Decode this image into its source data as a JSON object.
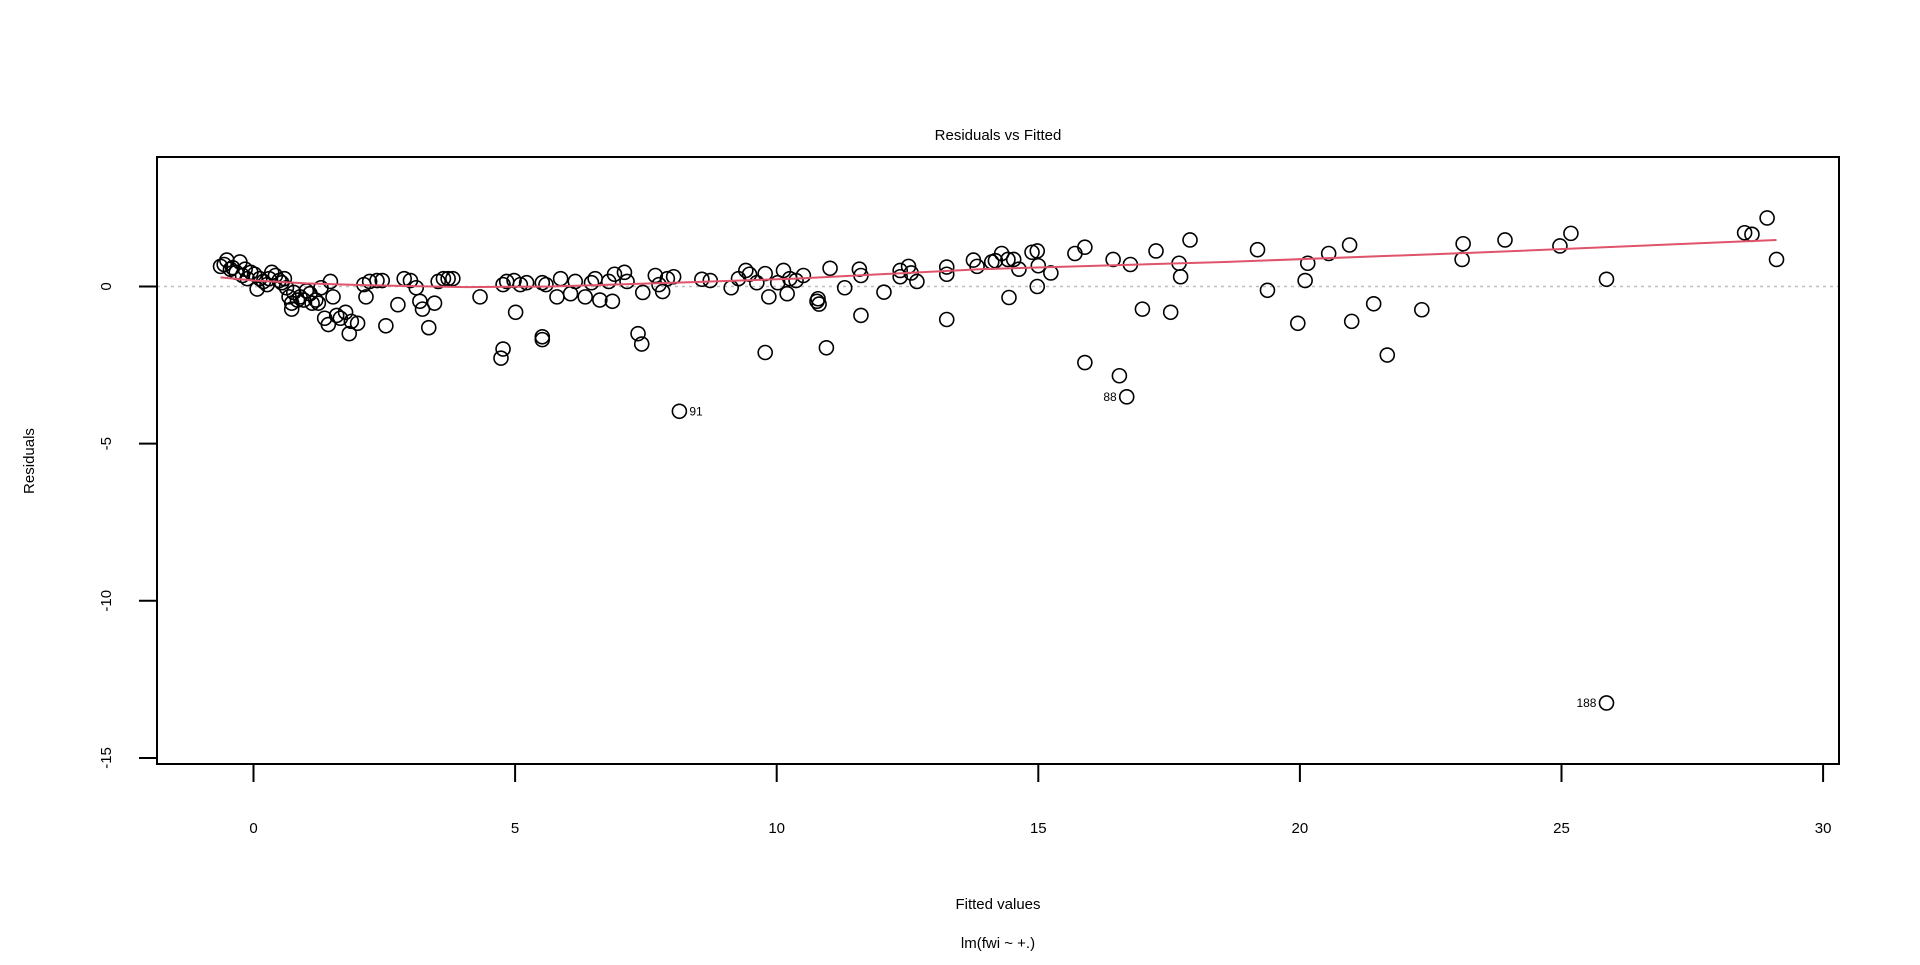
{
  "chart_data": {
    "type": "scatter",
    "title": "Residuals vs Fitted",
    "xlabel": "Fitted values",
    "ylabel": "Residuals",
    "subtitle": "lm(fwi ~ +.)",
    "xlim": [
      -1.85,
      30.3
    ],
    "ylim": [
      -15.2,
      4.1
    ],
    "x_ticks": [
      0,
      5,
      10,
      15,
      20,
      25,
      30
    ],
    "y_ticks": [
      0,
      -5,
      -10,
      -15
    ],
    "grid": false,
    "reference_line": 0,
    "colors": {
      "points": "#000000",
      "smooth": "#DF536B",
      "reference": "#BEBEBE"
    },
    "points": [
      [
        -0.63,
        0.64
      ],
      [
        -0.56,
        0.7
      ],
      [
        -0.51,
        0.84
      ],
      [
        -0.44,
        0.55
      ],
      [
        -0.4,
        0.6
      ],
      [
        -0.33,
        0.45
      ],
      [
        -0.26,
        0.78
      ],
      [
        -0.21,
        0.35
      ],
      [
        -0.16,
        0.55
      ],
      [
        -0.12,
        0.25
      ],
      [
        -0.05,
        0.45
      ],
      [
        0.02,
        0.39
      ],
      [
        0.07,
        -0.08
      ],
      [
        0.12,
        0.25
      ],
      [
        0.19,
        0.16
      ],
      [
        0.26,
        0.06
      ],
      [
        0.3,
        0.25
      ],
      [
        0.35,
        0.45
      ],
      [
        0.42,
        0.35
      ],
      [
        0.49,
        0.19
      ],
      [
        0.54,
        0.12
      ],
      [
        0.59,
        0.25
      ],
      [
        0.63,
        -0.04
      ],
      [
        0.68,
        -0.33
      ],
      [
        0.73,
        -0.72
      ],
      [
        0.73,
        -0.53
      ],
      [
        0.77,
        -0.19
      ],
      [
        0.84,
        -0.43
      ],
      [
        0.89,
        -0.33
      ],
      [
        0.96,
        -0.43
      ],
      [
        1.01,
        -0.14
      ],
      [
        1.08,
        -0.23
      ],
      [
        1.12,
        -0.53
      ],
      [
        1.19,
        -0.43
      ],
      [
        1.24,
        -0.53
      ],
      [
        1.29,
        -0.04
      ],
      [
        1.36,
        -1.01
      ],
      [
        1.43,
        -1.21
      ],
      [
        1.47,
        0.16
      ],
      [
        1.52,
        -0.33
      ],
      [
        1.59,
        -0.92
      ],
      [
        1.66,
        -1.01
      ],
      [
        1.76,
        -0.82
      ],
      [
        1.83,
        -1.5
      ],
      [
        1.87,
        -1.11
      ],
      [
        1.99,
        -1.17
      ],
      [
        2.11,
        0.06
      ],
      [
        2.15,
        -0.33
      ],
      [
        2.22,
        0.16
      ],
      [
        2.36,
        0.19
      ],
      [
        2.46,
        0.19
      ],
      [
        2.53,
        -1.25
      ],
      [
        2.76,
        -0.58
      ],
      [
        2.88,
        0.25
      ],
      [
        3.0,
        0.19
      ],
      [
        3.11,
        -0.04
      ],
      [
        3.18,
        -0.47
      ],
      [
        3.23,
        -0.72
      ],
      [
        3.35,
        -1.31
      ],
      [
        3.46,
        -0.53
      ],
      [
        3.53,
        0.16
      ],
      [
        3.63,
        0.25
      ],
      [
        3.72,
        0.25
      ],
      [
        3.81,
        0.25
      ],
      [
        4.33,
        -0.33
      ],
      [
        4.73,
        -2.28
      ],
      [
        4.77,
        -1.99
      ],
      [
        4.77,
        0.06
      ],
      [
        4.84,
        0.16
      ],
      [
        4.98,
        0.19
      ],
      [
        5.01,
        -0.82
      ],
      [
        5.1,
        0.06
      ],
      [
        5.22,
        0.12
      ],
      [
        5.52,
        -1.69
      ],
      [
        5.52,
        -1.6
      ],
      [
        5.52,
        0.12
      ],
      [
        5.59,
        0.06
      ],
      [
        5.8,
        -0.33
      ],
      [
        5.87,
        0.25
      ],
      [
        6.06,
        -0.23
      ],
      [
        6.15,
        0.16
      ],
      [
        6.34,
        -0.33
      ],
      [
        6.46,
        0.12
      ],
      [
        6.53,
        0.25
      ],
      [
        6.62,
        -0.43
      ],
      [
        6.79,
        0.16
      ],
      [
        6.86,
        -0.47
      ],
      [
        6.9,
        0.39
      ],
      [
        7.09,
        0.45
      ],
      [
        7.14,
        0.16
      ],
      [
        7.35,
        -1.5
      ],
      [
        7.42,
        -1.83
      ],
      [
        7.44,
        -0.19
      ],
      [
        7.68,
        0.35
      ],
      [
        7.75,
        0.06
      ],
      [
        7.82,
        -0.16
      ],
      [
        7.91,
        0.25
      ],
      [
        8.03,
        0.31
      ],
      [
        8.14,
        -3.97
      ],
      [
        8.57,
        0.23
      ],
      [
        8.73,
        0.19
      ],
      [
        9.13,
        -0.04
      ],
      [
        9.27,
        0.25
      ],
      [
        9.41,
        0.51
      ],
      [
        9.48,
        0.39
      ],
      [
        9.62,
        0.12
      ],
      [
        9.78,
        -2.1
      ],
      [
        9.78,
        0.41
      ],
      [
        9.85,
        -0.33
      ],
      [
        10.02,
        0.12
      ],
      [
        10.13,
        0.51
      ],
      [
        10.2,
        -0.23
      ],
      [
        10.25,
        0.25
      ],
      [
        10.37,
        0.19
      ],
      [
        10.51,
        0.35
      ],
      [
        10.77,
        -0.47
      ],
      [
        10.79,
        -0.39
      ],
      [
        10.81,
        -0.56
      ],
      [
        10.95,
        -1.95
      ],
      [
        11.02,
        0.58
      ],
      [
        11.3,
        -0.04
      ],
      [
        11.58,
        0.55
      ],
      [
        11.61,
        0.35
      ],
      [
        11.61,
        -0.92
      ],
      [
        12.05,
        -0.18
      ],
      [
        12.36,
        0.51
      ],
      [
        12.36,
        0.31
      ],
      [
        12.52,
        0.64
      ],
      [
        12.57,
        0.43
      ],
      [
        12.68,
        0.16
      ],
      [
        13.25,
        0.62
      ],
      [
        13.25,
        0.39
      ],
      [
        13.25,
        -1.05
      ],
      [
        13.76,
        0.84
      ],
      [
        13.83,
        0.64
      ],
      [
        14.11,
        0.78
      ],
      [
        14.18,
        0.82
      ],
      [
        14.3,
        1.05
      ],
      [
        14.42,
        0.86
      ],
      [
        14.44,
        -0.35
      ],
      [
        14.53,
        0.86
      ],
      [
        14.63,
        0.55
      ],
      [
        14.88,
        1.09
      ],
      [
        14.98,
        1.13
      ],
      [
        14.98,
        0.0
      ],
      [
        15.0,
        0.66
      ],
      [
        15.24,
        0.43
      ],
      [
        15.7,
        1.05
      ],
      [
        15.89,
        1.25
      ],
      [
        15.89,
        -2.42
      ],
      [
        16.43,
        0.86
      ],
      [
        16.55,
        -2.84
      ],
      [
        16.69,
        -3.51
      ],
      [
        16.76,
        0.7
      ],
      [
        16.99,
        -0.72
      ],
      [
        17.25,
        1.13
      ],
      [
        17.53,
        -0.82
      ],
      [
        17.69,
        0.74
      ],
      [
        17.72,
        0.31
      ],
      [
        17.9,
        1.48
      ],
      [
        19.19,
        1.17
      ],
      [
        19.38,
        -0.12
      ],
      [
        19.96,
        -1.17
      ],
      [
        20.1,
        0.19
      ],
      [
        20.15,
        0.74
      ],
      [
        20.55,
        1.05
      ],
      [
        20.95,
        1.32
      ],
      [
        20.99,
        -1.11
      ],
      [
        21.41,
        -0.55
      ],
      [
        21.67,
        -2.18
      ],
      [
        22.33,
        -0.74
      ],
      [
        23.1,
        0.86
      ],
      [
        23.12,
        1.36
      ],
      [
        23.92,
        1.48
      ],
      [
        24.97,
        1.29
      ],
      [
        25.18,
        1.69
      ],
      [
        25.86,
        0.23
      ],
      [
        25.86,
        -13.25
      ],
      [
        28.5,
        1.71
      ],
      [
        28.64,
        1.66
      ],
      [
        28.93,
        2.18
      ],
      [
        29.11,
        0.86
      ]
    ],
    "smooth_line": [
      [
        -0.63,
        0.29
      ],
      [
        0,
        0.19
      ],
      [
        1.01,
        0.1
      ],
      [
        2.18,
        0.04
      ],
      [
        4.05,
        -0.02
      ],
      [
        5.69,
        0
      ],
      [
        8.03,
        0.12
      ],
      [
        10.37,
        0.25
      ],
      [
        13.88,
        0.55
      ],
      [
        18.56,
        0.78
      ],
      [
        23.24,
        1.07
      ],
      [
        29.11,
        1.48
      ]
    ],
    "annotations": [
      {
        "label": "91",
        "x": 8.14,
        "y": -3.97,
        "side": "right"
      },
      {
        "label": "88",
        "x": 16.69,
        "y": -3.51,
        "side": "left"
      },
      {
        "label": "188",
        "x": 25.86,
        "y": -13.25,
        "side": "left"
      }
    ]
  }
}
